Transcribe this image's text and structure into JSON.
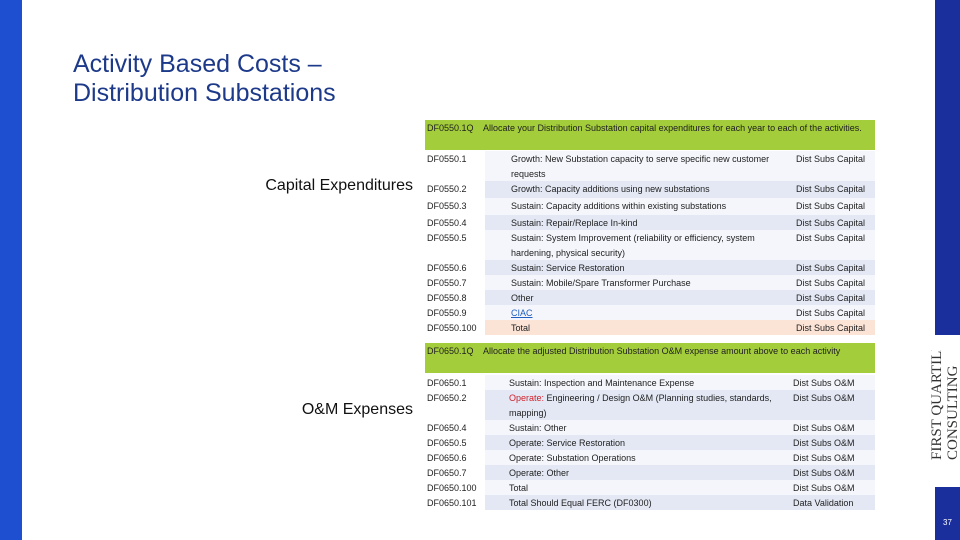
{
  "title": [
    "Activity Based Costs –",
    "Distribution Substations"
  ],
  "page_number": "37",
  "logo": {
    "line1": "FIRST QUARTILE",
    "line2": "CONSULTING"
  },
  "sections": [
    {
      "label": "Capital Expenditures",
      "header": {
        "code": "DF0550.1Q",
        "text": "Allocate your Distribution Substation capital expenditures for each year to each of the activities."
      },
      "rows": [
        {
          "code": "DF0550.1",
          "desc": "Growth: New Substation capacity to serve specific new customer requests",
          "cat": "Dist Subs Capital"
        },
        {
          "code": "DF0550.2",
          "desc": "Growth: Capacity additions using new substations",
          "cat": "Dist Subs Capital"
        },
        {
          "code": "DF0550.3",
          "desc": "Sustain: Capacity additions within existing substations",
          "cat": "Dist Subs Capital"
        },
        {
          "code": "DF0550.4",
          "desc": "Sustain: Repair/Replace In-kind",
          "cat": "Dist Subs Capital"
        },
        {
          "code": "DF0550.5",
          "desc": "Sustain: System Improvement (reliability or efficiency, system hardening, physical security)",
          "cat": "Dist Subs Capital"
        },
        {
          "code": "DF0550.6",
          "desc": "Sustain: Service Restoration",
          "cat": "Dist Subs Capital"
        },
        {
          "code": "DF0550.7",
          "desc": "Sustain: Mobile/Spare Transformer Purchase",
          "cat": "Dist Subs Capital"
        },
        {
          "code": "DF0550.8",
          "desc": "Other",
          "cat": "Dist Subs Capital"
        },
        {
          "code": "DF0550.9",
          "desc": "CIAC",
          "cat": "Dist Subs Capital",
          "link": true
        },
        {
          "code": "DF0550.100",
          "desc": "Total",
          "cat": "Dist Subs Capital",
          "highlight": true
        }
      ]
    },
    {
      "label": "O&M Expenses",
      "header": {
        "code": "DF0650.1Q",
        "text": "Allocate the adjusted Distribution Substation O&M expense amount above to each activity"
      },
      "rows": [
        {
          "code": "DF0650.1",
          "desc": "Sustain: Inspection and Maintenance Expense",
          "cat": "Dist Subs O&M"
        },
        {
          "code": "DF0650.2",
          "desc": [
            "Operate:",
            " Engineering / Design O&M (Planning studies, standards, mapping)"
          ],
          "cat": "Dist Subs O&M"
        },
        {
          "code": "DF0650.4",
          "desc": "Sustain: Other",
          "cat": "Dist Subs O&M"
        },
        {
          "code": "DF0650.5",
          "desc": "Operate: Service Restoration",
          "cat": "Dist Subs O&M"
        },
        {
          "code": "DF0650.6",
          "desc": "Operate: Substation Operations",
          "cat": "Dist Subs O&M"
        },
        {
          "code": "DF0650.7",
          "desc": "Operate: Other",
          "cat": "Dist Subs O&M"
        },
        {
          "code": "DF0650.100",
          "desc": "Total",
          "cat": "Dist Subs O&M"
        },
        {
          "code": "DF0650.101",
          "desc": "Total Should Equal FERC (DF0300)",
          "cat": "Data Validation"
        }
      ]
    }
  ]
}
